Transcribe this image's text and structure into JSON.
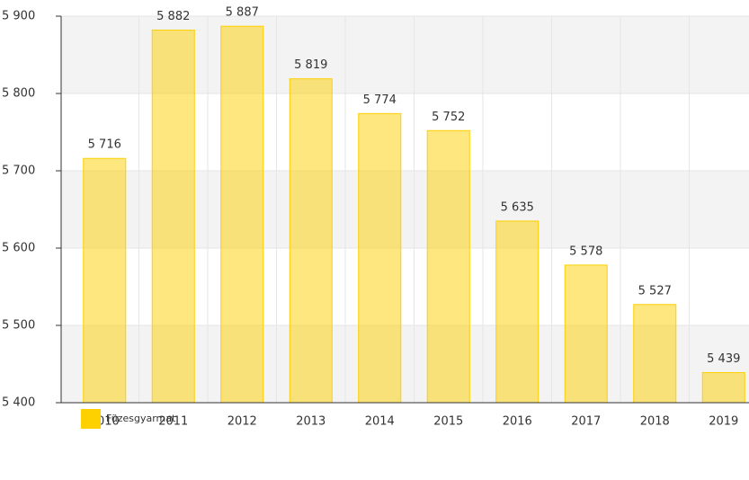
{
  "chart_data": {
    "type": "bar",
    "categories": [
      "2010",
      "2011",
      "2012",
      "2013",
      "2014",
      "2015",
      "2016",
      "2017",
      "2018",
      "2019"
    ],
    "series": [
      {
        "name": "Füzesgyarmat",
        "color": "#fdd000",
        "values": [
          5716,
          5882,
          5887,
          5819,
          5774,
          5752,
          5635,
          5578,
          5527,
          5439
        ],
        "value_labels": [
          "5 716",
          "5 882",
          "5 887",
          "5 819",
          "5 774",
          "5 752",
          "5 635",
          "5 578",
          "5 527",
          "5 439"
        ]
      }
    ],
    "ylim": [
      5400,
      5900
    ],
    "yticks": [
      {
        "value": 5400,
        "label": "5 400"
      },
      {
        "value": 5500,
        "label": "5 500"
      },
      {
        "value": 5600,
        "label": "5 600"
      },
      {
        "value": 5700,
        "label": "5 700"
      },
      {
        "value": 5800,
        "label": "5 800"
      },
      {
        "value": 5900,
        "label": "5 900"
      }
    ],
    "grid": true,
    "legend": "bottom-left"
  }
}
